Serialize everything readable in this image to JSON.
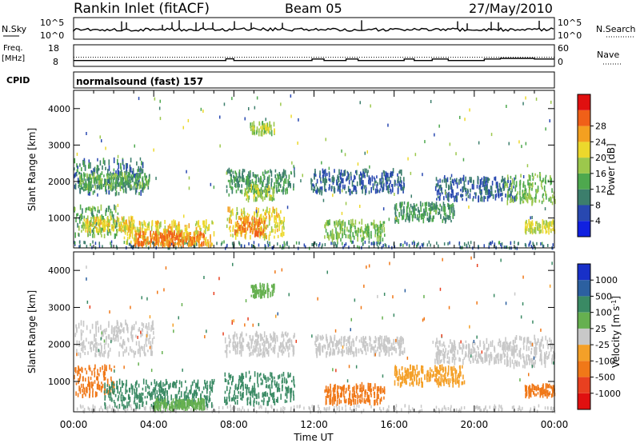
{
  "header": {
    "station": "Rankin Inlet (fitACF)",
    "beam": "Beam 05",
    "date": "27/May/2010"
  },
  "strip_labels": {
    "nsky": "N.Sky",
    "nsky_max": "10^5",
    "nsky_min": "10^0",
    "nsearch": "N.Search",
    "nsearch_max": "10^5",
    "nsearch_min": "10^0",
    "freq": "Freq.",
    "freq_unit": "[MHz]",
    "freq_max": "18",
    "freq_min": "8",
    "nave": "Nave",
    "nave_max": "60",
    "nave_min": "0",
    "cpid": "CPID",
    "cpid_value": "normalsound (fast) 157"
  },
  "x_axis": {
    "label": "Time UT",
    "ticks": [
      "00:00",
      "04:00",
      "08:00",
      "12:00",
      "16:00",
      "20:00",
      "00:00"
    ]
  },
  "y_axis": {
    "label": "Slant Range [km]",
    "ticks": [
      "1000",
      "2000",
      "3000",
      "4000"
    ]
  },
  "power_scale": {
    "label": "Power [dB]",
    "ticks": [
      "4",
      "8",
      "12",
      "16",
      "20",
      "24",
      "28"
    ],
    "colors": [
      "#1020e0",
      "#2848b0",
      "#3c7e6c",
      "#4ea84e",
      "#9cc84c",
      "#ecd82c",
      "#f4a020",
      "#f06018",
      "#e01010"
    ]
  },
  "velocity_scale": {
    "label": "Velocity [m s^-1]",
    "ticks": [
      "1000",
      "500",
      "100",
      "25",
      "-25",
      "-100",
      "-500",
      "-1000"
    ],
    "colors": [
      "#1830c8",
      "#2c60a0",
      "#3a8a64",
      "#66b050",
      "#c8c8c8",
      "#f4a028",
      "#f07818",
      "#e84020",
      "#e01010"
    ]
  },
  "chart_data": [
    {
      "type": "heatmap",
      "title": "Power",
      "xlabel": "Time UT",
      "ylabel": "Slant Range [km]",
      "xlim": [
        0,
        24
      ],
      "ylim": [
        180,
        4500
      ],
      "colorbar": "Power [dB]",
      "patches": [
        {
          "t0": 0.0,
          "t1": 3.5,
          "r0": 1650,
          "r1": 2600,
          "value": 10
        },
        {
          "t0": 0.2,
          "t1": 3.8,
          "r0": 1800,
          "r1": 2200,
          "value": 14
        },
        {
          "t0": 0.0,
          "t1": 2.2,
          "r0": 500,
          "r1": 1300,
          "value": 14
        },
        {
          "t0": 0.5,
          "t1": 3.0,
          "r0": 650,
          "r1": 1000,
          "value": 22
        },
        {
          "t0": 2.5,
          "t1": 7.0,
          "r0": 250,
          "r1": 900,
          "value": 22
        },
        {
          "t0": 3.0,
          "t1": 6.5,
          "r0": 250,
          "r1": 600,
          "value": 28
        },
        {
          "t0": 7.6,
          "t1": 10.5,
          "r0": 450,
          "r1": 1250,
          "value": 22
        },
        {
          "t0": 8.0,
          "t1": 9.5,
          "r0": 500,
          "r1": 1000,
          "value": 28
        },
        {
          "t0": 7.6,
          "t1": 11.0,
          "r0": 1700,
          "r1": 2300,
          "value": 12
        },
        {
          "t0": 8.5,
          "t1": 10.0,
          "r0": 1500,
          "r1": 1900,
          "value": 18
        },
        {
          "t0": 8.8,
          "t1": 10.0,
          "r0": 3300,
          "r1": 3600,
          "value": 18
        },
        {
          "t0": 11.8,
          "t1": 16.5,
          "r0": 1700,
          "r1": 2300,
          "value": 8
        },
        {
          "t0": 12.5,
          "t1": 15.5,
          "r0": 400,
          "r1": 900,
          "value": 16
        },
        {
          "t0": 16.0,
          "t1": 19.0,
          "r0": 900,
          "r1": 1400,
          "value": 12
        },
        {
          "t0": 18.0,
          "t1": 22.0,
          "r0": 1500,
          "r1": 2100,
          "value": 8
        },
        {
          "t0": 21.5,
          "t1": 24.0,
          "r0": 1400,
          "r1": 2200,
          "value": 16
        },
        {
          "t0": 22.5,
          "t1": 24.0,
          "r0": 600,
          "r1": 900,
          "value": 20
        }
      ]
    },
    {
      "type": "heatmap",
      "title": "Velocity",
      "xlabel": "Time UT",
      "ylabel": "Slant Range [km]",
      "xlim": [
        0,
        24
      ],
      "ylim": [
        180,
        4500
      ],
      "colorbar": "Velocity [m s^-1]",
      "patches": [
        {
          "t0": 0.0,
          "t1": 4.0,
          "r0": 1700,
          "r1": 2600,
          "value": 0
        },
        {
          "t0": 0.0,
          "t1": 2.0,
          "r0": 600,
          "r1": 1400,
          "value": -300
        },
        {
          "t0": 1.5,
          "t1": 7.0,
          "r0": 300,
          "r1": 1000,
          "value": 300
        },
        {
          "t0": 4.0,
          "t1": 6.5,
          "r0": 250,
          "r1": 500,
          "value": 50
        },
        {
          "t0": 7.5,
          "t1": 11.0,
          "r0": 400,
          "r1": 1200,
          "value": 300
        },
        {
          "t0": 7.5,
          "t1": 11.0,
          "r0": 1700,
          "r1": 2300,
          "value": 0
        },
        {
          "t0": 8.8,
          "t1": 10.0,
          "r0": 3300,
          "r1": 3600,
          "value": 60
        },
        {
          "t0": 12.0,
          "t1": 16.5,
          "r0": 1700,
          "r1": 2200,
          "value": 0
        },
        {
          "t0": 12.5,
          "t1": 15.5,
          "r0": 400,
          "r1": 900,
          "value": -300
        },
        {
          "t0": 16.0,
          "t1": 19.5,
          "r0": 900,
          "r1": 1400,
          "value": -50
        },
        {
          "t0": 18.0,
          "t1": 22.0,
          "r0": 1500,
          "r1": 2100,
          "value": 0
        },
        {
          "t0": 21.5,
          "t1": 24.0,
          "r0": 1400,
          "r1": 2200,
          "value": 0
        },
        {
          "t0": 22.5,
          "t1": 24.0,
          "r0": 600,
          "r1": 900,
          "value": -300
        }
      ]
    }
  ]
}
